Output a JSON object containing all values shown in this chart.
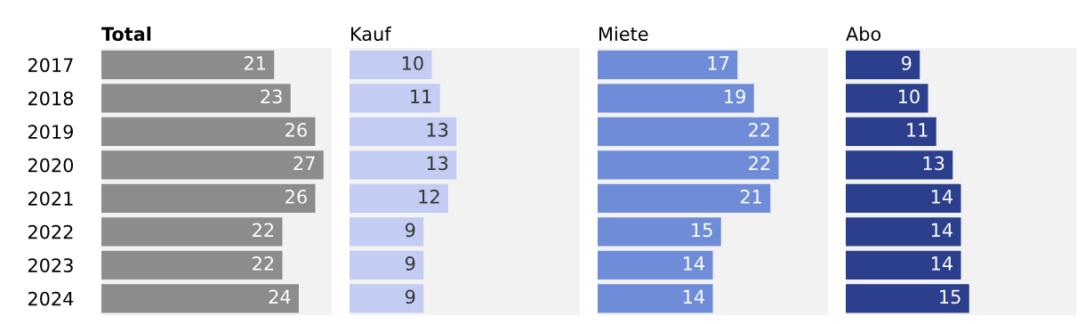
{
  "chart_data": [
    {
      "type": "bar",
      "orientation": "horizontal",
      "title": "Total",
      "categories": [
        "2017",
        "2018",
        "2019",
        "2020",
        "2021",
        "2022",
        "2023",
        "2024"
      ],
      "values": [
        21,
        23,
        26,
        27,
        26,
        22,
        22,
        24
      ],
      "color": "#8c8c8c",
      "xlim": [
        0,
        28
      ],
      "data_labels": true,
      "tick_labels": "y"
    },
    {
      "type": "bar",
      "orientation": "horizontal",
      "title": "Kauf",
      "categories": [
        "2017",
        "2018",
        "2019",
        "2020",
        "2021",
        "2022",
        "2023",
        "2024"
      ],
      "values": [
        10,
        11,
        13,
        13,
        12,
        9,
        9,
        9
      ],
      "color": "#c3cdf3",
      "xlim": [
        0,
        28
      ],
      "data_labels": true,
      "tick_labels": false
    },
    {
      "type": "bar",
      "orientation": "horizontal",
      "title": "Miete",
      "categories": [
        "2017",
        "2018",
        "2019",
        "2020",
        "2021",
        "2022",
        "2023",
        "2024"
      ],
      "values": [
        17,
        19,
        22,
        22,
        21,
        15,
        14,
        14
      ],
      "color": "#6f8cd9",
      "xlim": [
        0,
        28
      ],
      "data_labels": true,
      "tick_labels": false
    },
    {
      "type": "bar",
      "orientation": "horizontal",
      "title": "Abo",
      "categories": [
        "2017",
        "2018",
        "2019",
        "2020",
        "2021",
        "2022",
        "2023",
        "2024"
      ],
      "values": [
        9,
        10,
        11,
        13,
        14,
        14,
        14,
        15
      ],
      "color": "#2b3f8c",
      "xlim": [
        0,
        28
      ],
      "data_labels": true,
      "tick_labels": false
    }
  ]
}
